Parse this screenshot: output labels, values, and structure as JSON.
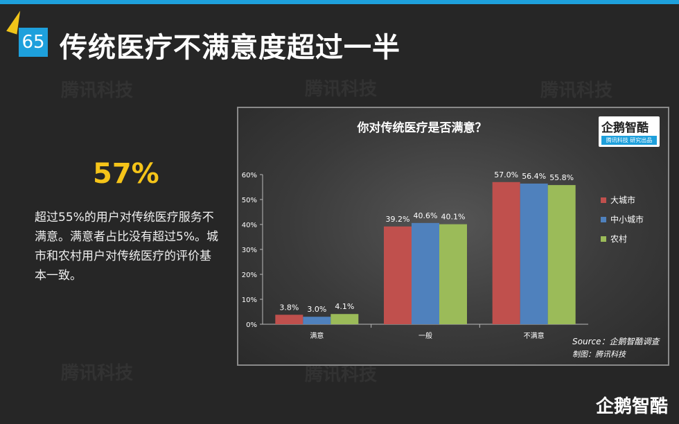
{
  "slide": {
    "number": "65",
    "title": "传统医疗不满意度超过一半",
    "highlight_value": "57%",
    "description": "超过55%的用户对传统医疗服务不满意。满意者占比没有超过5%。城市和农村用户对传统医疗的评价基本一致。",
    "watermark_text": "腾讯科技",
    "footer_logo": "企鹅智酷"
  },
  "chart_logo": {
    "main": "企鹅智酷",
    "sub": "腾讯科技  研究出品"
  },
  "chart_data": {
    "type": "bar",
    "title": "你对传统医疗是否满意？",
    "categories": [
      "满意",
      "一般",
      "不满意"
    ],
    "series": [
      {
        "name": "大城市",
        "color": "#c0504d",
        "values": [
          3.8,
          39.2,
          57.0
        ],
        "labels": [
          "3.8%",
          "39.2%",
          "57.0%"
        ]
      },
      {
        "name": "中小城市",
        "color": "#4f81bd",
        "values": [
          3.0,
          40.6,
          56.4
        ],
        "labels": [
          "3.0%",
          "40.6%",
          "56.4%"
        ]
      },
      {
        "name": "农村",
        "color": "#9bbb59",
        "values": [
          4.1,
          40.1,
          55.8
        ],
        "labels": [
          "4.1%",
          "40.1%",
          "55.8%"
        ]
      }
    ],
    "ylim": [
      0,
      60
    ],
    "yticks": [
      "0%",
      "10%",
      "20%",
      "30%",
      "40%",
      "50%",
      "60%"
    ],
    "legend": "right",
    "grid": false,
    "source": "Source：企鹅智酷调查",
    "credit": "制图：腾讯科技"
  }
}
